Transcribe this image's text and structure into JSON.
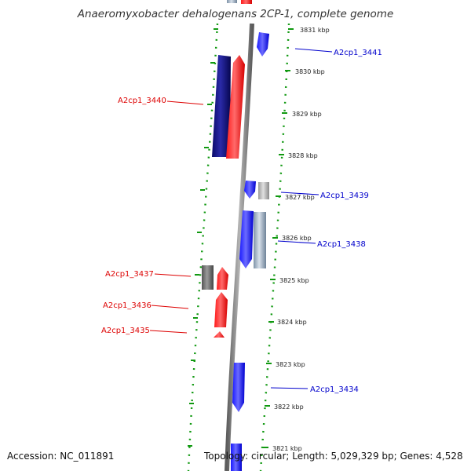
{
  "title": "Anaeromyxobacter dehalogenans 2CP-1, complete genome",
  "footer": {
    "accession": "Accession: NC_011891",
    "summary": "Topology: circular; Length: 5,029,329 bp; Genes: 4,528"
  },
  "colors": {
    "forward_label": "#0000cc",
    "reverse_label": "#dd0000",
    "tick": "#119911",
    "backbone": "#8a8a8a"
  },
  "ticks": [
    {
      "label": "3831 kbp"
    },
    {
      "label": "3830 kbp"
    },
    {
      "label": "3829 kbp"
    },
    {
      "label": "3828 kbp"
    },
    {
      "label": "3827 kbp"
    },
    {
      "label": "3826 kbp"
    },
    {
      "label": "3825 kbp"
    },
    {
      "label": "3824 kbp"
    },
    {
      "label": "3823 kbp"
    },
    {
      "label": "3822 kbp"
    },
    {
      "label": "3821 kbp"
    }
  ],
  "gene_labels": [
    {
      "text": "A2cp1_3441",
      "strand": "forward"
    },
    {
      "text": "A2cp1_3440",
      "strand": "reverse"
    },
    {
      "text": "A2cp1_3439",
      "strand": "forward"
    },
    {
      "text": "A2cp1_3438",
      "strand": "forward"
    },
    {
      "text": "A2cp1_3437",
      "strand": "reverse"
    },
    {
      "text": "A2cp1_3436",
      "strand": "reverse"
    },
    {
      "text": "A2cp1_3435",
      "strand": "reverse"
    },
    {
      "text": "A2cp1_3434",
      "strand": "forward"
    }
  ]
}
